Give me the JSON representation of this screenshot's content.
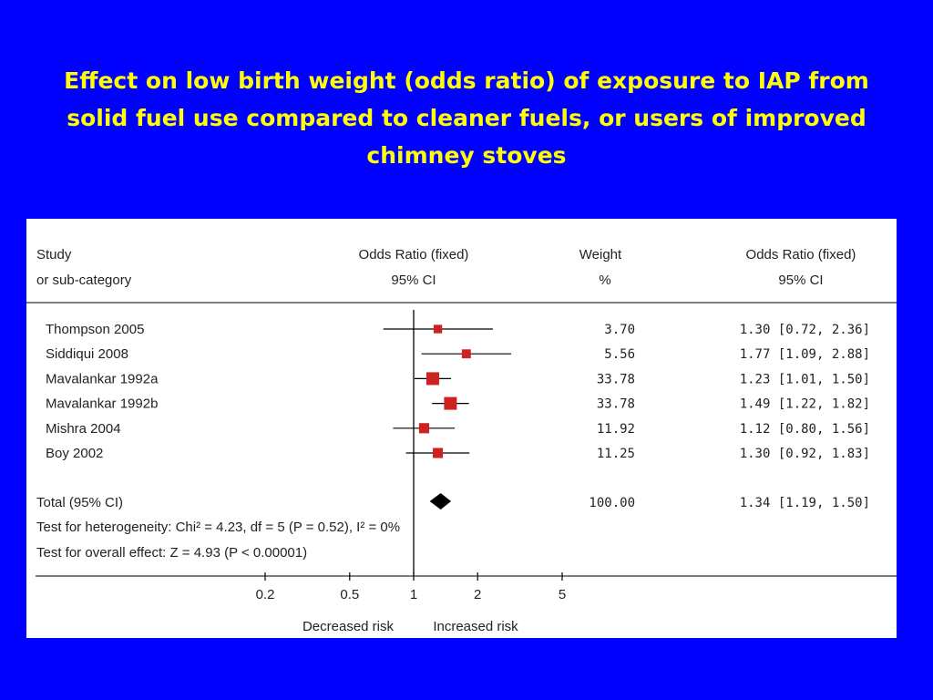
{
  "title_lines": [
    "Effect on low birth weight (odds ratio) of exposure to IAP from",
    "solid fuel use compared to cleaner fuels, or users of improved",
    "chimney stoves"
  ],
  "chart_data": {
    "type": "forest",
    "scale": "log",
    "x_ticks": [
      0.2,
      0.5,
      1,
      2,
      5
    ],
    "xlim": [
      0.2,
      5
    ],
    "colors": {
      "box": "#cc2222",
      "diamond": "#000000",
      "line": "#000000"
    },
    "headers": {
      "study": [
        "Study",
        "or sub-category"
      ],
      "or_fixed": [
        "Odds Ratio (fixed)",
        "95% CI"
      ],
      "weight": [
        "Weight",
        "%"
      ],
      "or_text": [
        "Odds Ratio (fixed)",
        "95% CI"
      ]
    },
    "studies": [
      {
        "name": "Thompson 2005",
        "or": 1.3,
        "lo": 0.72,
        "hi": 2.36,
        "weight_text": "3.70",
        "ci_text": "1.30 [0.72, 2.36]"
      },
      {
        "name": "Siddiqui 2008",
        "or": 1.77,
        "lo": 1.09,
        "hi": 2.88,
        "weight_text": "5.56",
        "ci_text": "1.77 [1.09, 2.88]"
      },
      {
        "name": "Mavalankar 1992a",
        "or": 1.23,
        "lo": 1.01,
        "hi": 1.5,
        "weight_text": "33.78",
        "ci_text": "1.23 [1.01, 1.50]"
      },
      {
        "name": "Mavalankar 1992b",
        "or": 1.49,
        "lo": 1.22,
        "hi": 1.82,
        "weight_text": "33.78",
        "ci_text": "1.49 [1.22, 1.82]"
      },
      {
        "name": "Mishra 2004",
        "or": 1.12,
        "lo": 0.8,
        "hi": 1.56,
        "weight_text": "11.92",
        "ci_text": "1.12 [0.80, 1.56]"
      },
      {
        "name": "Boy 2002",
        "or": 1.3,
        "lo": 0.92,
        "hi": 1.83,
        "weight_text": "11.25",
        "ci_text": "1.30 [0.92, 1.83]"
      }
    ],
    "weights": [
      3.7,
      5.56,
      33.78,
      33.78,
      11.92,
      11.25
    ],
    "total": {
      "label": "Total (95% CI)",
      "or": 1.34,
      "lo": 1.19,
      "hi": 1.5,
      "weight_text": "100.00",
      "ci_text": "1.34 [1.19, 1.50]"
    },
    "heterogeneity_text": "Test for heterogeneity: Chi² = 4.23, df = 5 (P = 0.52), I² = 0%",
    "overall_effect_text": "Test for overall effect: Z = 4.93 (P < 0.00001)",
    "axis_labels": {
      "left": "Decreased risk",
      "right": "Increased risk"
    }
  }
}
